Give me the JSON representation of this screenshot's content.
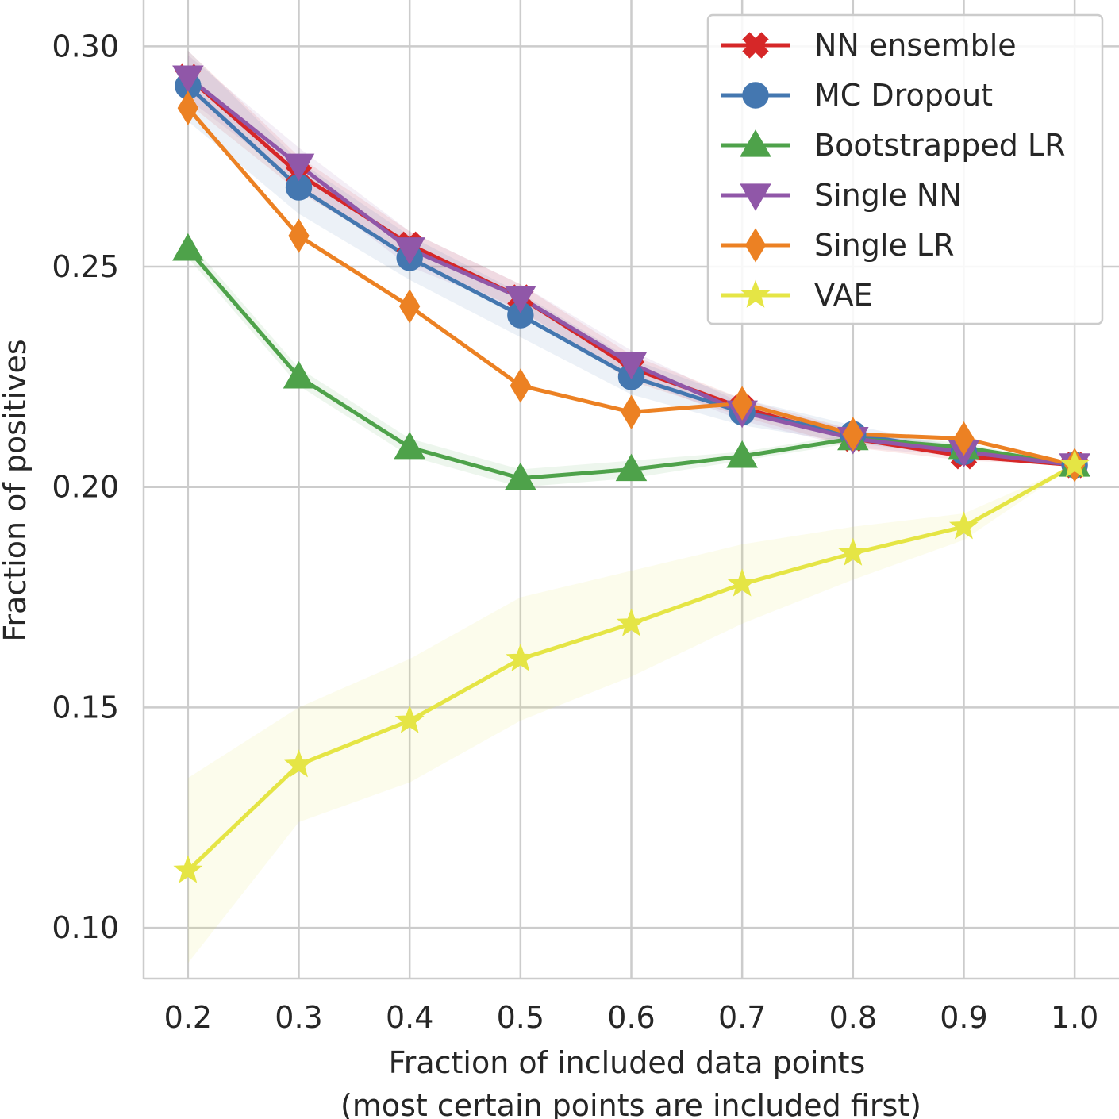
{
  "chart_data": {
    "type": "line",
    "xlabel_lines": [
      "Fraction of included data points",
      "(most certain points are included first)"
    ],
    "ylabel": "Fraction of positives",
    "x": [
      0.2,
      0.3,
      0.4,
      0.5,
      0.6,
      0.7,
      0.8,
      0.9,
      1.0
    ],
    "x_ticks": [
      "0.2",
      "0.3",
      "0.4",
      "0.5",
      "0.6",
      "0.7",
      "0.8",
      "0.9",
      "1.0"
    ],
    "y_ticks": [
      "0.10",
      "0.15",
      "0.20",
      "0.25",
      "0.30"
    ],
    "xlim": [
      0.16,
      1.04
    ],
    "ylim": [
      0.0885,
      0.3105
    ],
    "grid": true,
    "legend_position": "top-right",
    "series": [
      {
        "name": "NN ensemble",
        "color": "#d62728",
        "marker": "x-filled",
        "values": [
          0.293,
          0.271,
          0.255,
          0.243,
          0.227,
          0.218,
          0.211,
          0.207,
          0.205
        ],
        "band": [
          0.006,
          0.004,
          0.003,
          0.003,
          0.003,
          0.002,
          0.002,
          0.001,
          0.0
        ]
      },
      {
        "name": "MC Dropout",
        "color": "#4477b0",
        "marker": "circle",
        "values": [
          0.291,
          0.268,
          0.252,
          0.239,
          0.225,
          0.217,
          0.212,
          0.208,
          0.205
        ],
        "band": [
          0.008,
          0.006,
          0.005,
          0.005,
          0.004,
          0.003,
          0.002,
          0.001,
          0.0
        ]
      },
      {
        "name": "Bootstrapped LR",
        "color": "#4ea24a",
        "marker": "triangle-up",
        "values": [
          0.254,
          0.225,
          0.209,
          0.202,
          0.204,
          0.207,
          0.211,
          0.209,
          0.205
        ],
        "band": [
          0.002,
          0.002,
          0.002,
          0.002,
          0.002,
          0.001,
          0.001,
          0.001,
          0.0
        ]
      },
      {
        "name": "Single NN",
        "color": "#9057a8",
        "marker": "triangle-down",
        "values": [
          0.293,
          0.273,
          0.254,
          0.243,
          0.228,
          0.217,
          0.211,
          0.208,
          0.205
        ],
        "band": [
          0.005,
          0.004,
          0.004,
          0.003,
          0.003,
          0.002,
          0.002,
          0.001,
          0.0
        ]
      },
      {
        "name": "Single LR",
        "color": "#ec8123",
        "marker": "diamond",
        "values": [
          0.286,
          0.257,
          0.241,
          0.223,
          0.217,
          0.219,
          0.212,
          0.211,
          0.205
        ],
        "band": [
          0.0,
          0.0,
          0.0,
          0.0,
          0.0,
          0.0,
          0.0,
          0.0,
          0.0
        ]
      },
      {
        "name": "VAE",
        "color": "#e5e545",
        "marker": "star",
        "values": [
          0.113,
          0.137,
          0.147,
          0.161,
          0.169,
          0.178,
          0.185,
          0.191,
          0.205
        ],
        "band": [
          0.021,
          0.013,
          0.014,
          0.014,
          0.012,
          0.009,
          0.006,
          0.003,
          0.0
        ]
      }
    ]
  }
}
